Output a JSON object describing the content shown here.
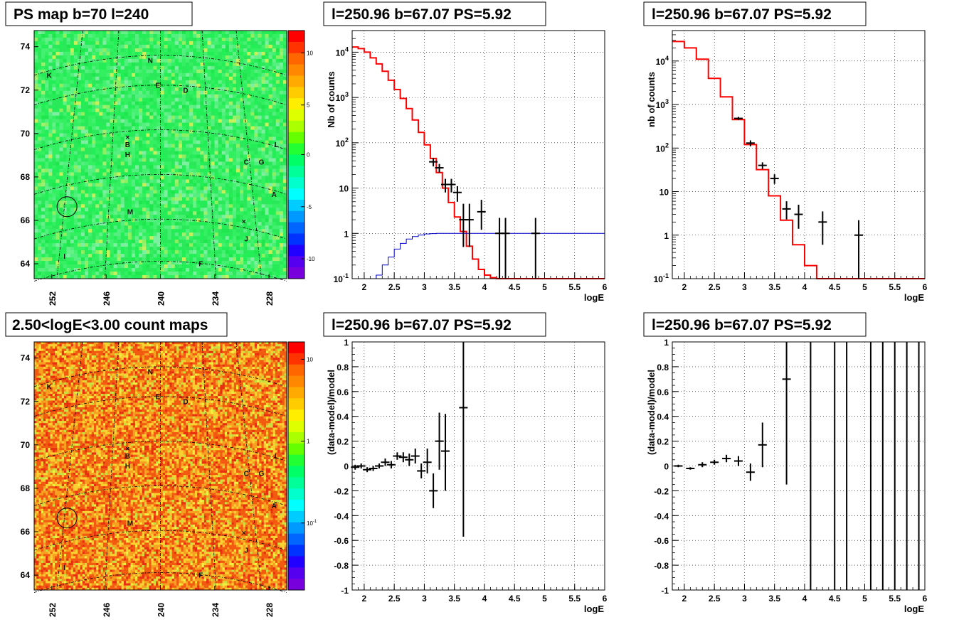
{
  "chart_data": [
    {
      "type": "heatmap",
      "title": "PS map b=70 l=240",
      "x_ticks": [
        "252",
        "246",
        "240",
        "234",
        "228"
      ],
      "y_ticks": [
        "64",
        "66",
        "68",
        "70",
        "72",
        "74"
      ],
      "colorbar_ticks": [
        "10",
        "5",
        "0",
        "-5",
        "-10"
      ],
      "labels": [
        "K",
        "N",
        "E",
        "D",
        "B",
        "H",
        "L",
        "C",
        "G",
        "A",
        "M",
        "J",
        "I",
        "F"
      ]
    },
    {
      "type": "line",
      "title": "l=250.96 b=67.07 PS=5.92",
      "xlabel": "logE",
      "ylabel": "Nb of counts",
      "xlim": [
        1.8,
        6
      ],
      "ylim": [
        0.1,
        30000
      ],
      "log_y": true,
      "grid": true,
      "x_ticks": [
        "2",
        "2.5",
        "3",
        "3.5",
        "4",
        "4.5",
        "5",
        "5.5",
        "6"
      ],
      "y_ticks": [
        "10^4",
        "10^3",
        "10^2",
        "10",
        "1",
        "10^-1"
      ],
      "series": [
        {
          "color": "#ff0000",
          "style": "step",
          "x": [
            1.8,
            1.9,
            2.0,
            2.1,
            2.2,
            2.3,
            2.4,
            2.5,
            2.6,
            2.7,
            2.8,
            2.9,
            3.0,
            3.1,
            3.2,
            3.3,
            3.4,
            3.5,
            3.6,
            3.7,
            3.8,
            3.9,
            4.0,
            4.1,
            4.2,
            6.0
          ],
          "y": [
            13000,
            12000,
            10000,
            7500,
            5500,
            3800,
            2400,
            1500,
            950,
            570,
            320,
            170,
            90,
            45,
            22,
            10,
            4.8,
            2.3,
            1.1,
            0.52,
            0.27,
            0.16,
            0.12,
            0.105,
            0.1,
            0.1
          ]
        },
        {
          "color": "#0000cc",
          "style": "step",
          "x": [
            1.8,
            2.1,
            2.2,
            2.3,
            2.4,
            2.5,
            2.6,
            2.7,
            2.8,
            2.9,
            3.0,
            3.1,
            3.2,
            3.4,
            6.0
          ],
          "y": [
            0.05,
            0.08,
            0.12,
            0.2,
            0.3,
            0.45,
            0.6,
            0.75,
            0.85,
            0.92,
            0.97,
            0.99,
            1.0,
            1.0,
            1.0
          ]
        },
        {
          "color": "#000000",
          "style": "errorbar",
          "x": [
            3.15,
            3.25,
            3.35,
            3.45,
            3.55,
            3.65,
            3.75,
            3.95,
            4.25,
            4.35,
            4.85
          ],
          "y": [
            38,
            28,
            12,
            12,
            8,
            2,
            2,
            3,
            1,
            1,
            1
          ],
          "ylow": [
            30,
            22,
            8,
            8,
            5,
            0.5,
            0.5,
            1.2,
            0.1,
            0.1,
            0.1
          ],
          "yhigh": [
            46,
            34,
            16,
            16,
            11,
            4.5,
            4.5,
            5.5,
            2.2,
            2.2,
            2.2
          ]
        }
      ]
    },
    {
      "type": "line",
      "title": "l=250.96 b=67.07 PS=5.92",
      "xlabel": "logE",
      "ylabel": "nb of counts",
      "xlim": [
        1.8,
        6
      ],
      "ylim": [
        0.1,
        50000
      ],
      "log_y": true,
      "grid": true,
      "x_ticks": [
        "2",
        "2.5",
        "3",
        "3.5",
        "4",
        "4.5",
        "5",
        "5.5",
        "6"
      ],
      "y_ticks": [
        "10^4",
        "10^3",
        "10^2",
        "10",
        "1",
        "10^-1"
      ],
      "series": [
        {
          "color": "#ff0000",
          "style": "step",
          "x": [
            1.8,
            2.0,
            2.2,
            2.4,
            2.6,
            2.8,
            3.0,
            3.2,
            3.4,
            3.6,
            3.8,
            4.0,
            4.2,
            6.0
          ],
          "y": [
            28000,
            20000,
            11000,
            4000,
            1500,
            450,
            120,
            32,
            8,
            2.2,
            0.6,
            0.2,
            0.1,
            0.1
          ]
        },
        {
          "color": "#000000",
          "style": "errorbar",
          "x": [
            2.9,
            3.1,
            3.3,
            3.5,
            3.7,
            3.9,
            4.3,
            4.9
          ],
          "y": [
            480,
            130,
            40,
            20,
            4,
            3,
            2,
            1
          ],
          "ylow": [
            440,
            110,
            33,
            15,
            2.3,
            1.4,
            0.6,
            0.1
          ],
          "yhigh": [
            520,
            150,
            47,
            25,
            6,
            5,
            3.5,
            2.2
          ]
        }
      ]
    },
    {
      "type": "heatmap",
      "title": "2.50<logE<3.00 count maps",
      "x_ticks": [
        "252",
        "246",
        "240",
        "234",
        "228"
      ],
      "y_ticks": [
        "64",
        "66",
        "68",
        "70",
        "72",
        "74"
      ],
      "colorbar_ticks": [
        "10",
        "1",
        "10^-1"
      ],
      "labels": [
        "K",
        "N",
        "E",
        "D",
        "B",
        "H",
        "L",
        "C",
        "G",
        "A",
        "M",
        "J",
        "I",
        "F"
      ]
    },
    {
      "type": "scatter",
      "title": "l=250.96 b=67.07 PS=5.92",
      "xlabel": "logE",
      "ylabel": "(data-model)/model",
      "xlim": [
        1.8,
        6
      ],
      "ylim": [
        -1,
        1
      ],
      "grid": true,
      "x_ticks": [
        "2",
        "2.5",
        "3",
        "3.5",
        "4",
        "4.5",
        "5",
        "5.5",
        "6"
      ],
      "y_ticks": [
        "-1",
        "-0.8",
        "-0.6",
        "-0.4",
        "-0.2",
        "0",
        "0.2",
        "0.4",
        "0.6",
        "0.8",
        "1"
      ],
      "series": [
        {
          "color": "#000000",
          "style": "errorbar",
          "x": [
            1.85,
            1.95,
            2.05,
            2.15,
            2.25,
            2.35,
            2.45,
            2.55,
            2.65,
            2.75,
            2.85,
            2.95,
            3.05,
            3.15,
            3.25,
            3.35,
            3.65
          ],
          "y": [
            -0.01,
            0.0,
            -0.03,
            -0.02,
            0.0,
            0.03,
            0.01,
            0.08,
            0.07,
            0.05,
            0.08,
            -0.04,
            0.03,
            -0.2,
            0.2,
            0.12,
            0.47
          ],
          "ylow": [
            -0.03,
            -0.02,
            -0.05,
            -0.04,
            -0.02,
            0.0,
            -0.02,
            0.05,
            0.03,
            0.0,
            0.02,
            -0.1,
            -0.06,
            -0.34,
            -0.03,
            -0.2,
            -0.57
          ],
          "yhigh": [
            0.01,
            0.02,
            -0.01,
            0.0,
            0.02,
            0.06,
            0.04,
            0.11,
            0.11,
            0.1,
            0.14,
            0.02,
            0.14,
            -0.06,
            0.43,
            0.42,
            1.0
          ]
        }
      ]
    },
    {
      "type": "scatter",
      "title": "l=250.96 b=67.07 PS=5.92",
      "xlabel": "logE",
      "ylabel": "(data-model)/model",
      "xlim": [
        1.8,
        6
      ],
      "ylim": [
        -1,
        1
      ],
      "grid": true,
      "x_ticks": [
        "2",
        "2.5",
        "3",
        "3.5",
        "4",
        "4.5",
        "5",
        "5.5",
        "6"
      ],
      "y_ticks": [
        "-1",
        "-0.8",
        "-0.6",
        "-0.4",
        "-0.2",
        "0",
        "0.2",
        "0.4",
        "0.6",
        "0.8",
        "1"
      ],
      "series": [
        {
          "color": "#000000",
          "style": "errorbar",
          "x": [
            1.9,
            2.1,
            2.3,
            2.5,
            2.7,
            2.9,
            3.1,
            3.3,
            3.7
          ],
          "y": [
            0.0,
            -0.02,
            0.01,
            0.03,
            0.06,
            0.04,
            -0.05,
            0.17,
            0.7
          ],
          "ylow": [
            -0.01,
            -0.03,
            -0.01,
            0.01,
            0.03,
            0.0,
            -0.12,
            -0.01,
            -0.15
          ],
          "yhigh": [
            0.01,
            -0.01,
            0.03,
            0.05,
            0.09,
            0.08,
            0.02,
            0.35,
            1.0
          ]
        },
        {
          "color": "#000000",
          "style": "vline",
          "x": [
            4.1,
            4.5,
            4.7,
            5.1,
            5.3,
            5.5,
            5.7,
            5.9
          ],
          "ylow": [
            -1,
            -1,
            -1,
            -1,
            -1,
            -1,
            -1,
            -1
          ],
          "yhigh": [
            1,
            1,
            1,
            1,
            1,
            1,
            1,
            1
          ]
        }
      ]
    }
  ]
}
